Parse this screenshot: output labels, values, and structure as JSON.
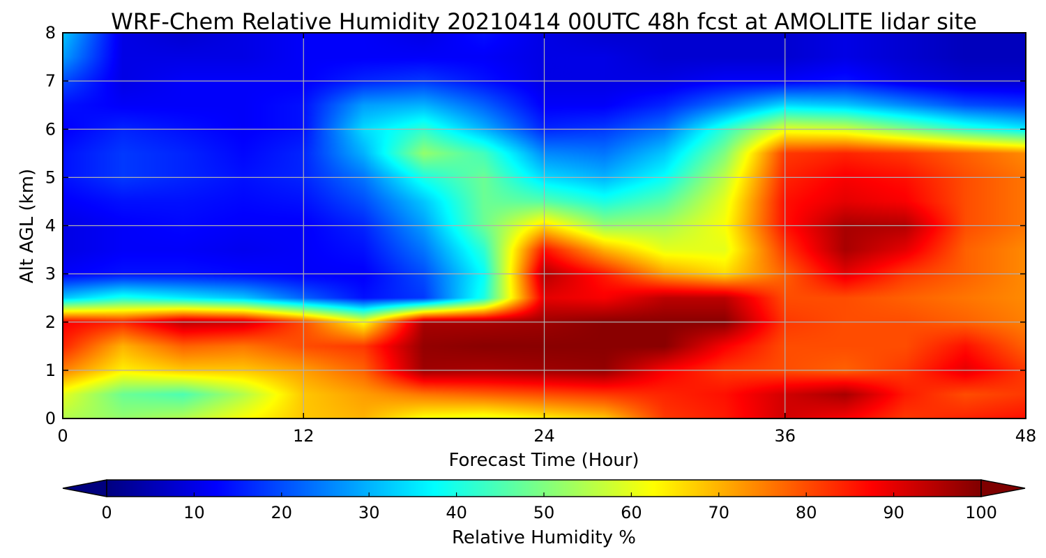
{
  "chart_data": {
    "type": "heatmap",
    "title": "WRF-Chem Relative Humidity 20210414 00UTC 48h fcst at AMOLITE lidar site",
    "xlabel": "Forecast Time (Hour)",
    "ylabel": "Alt AGL (km)",
    "xlim": [
      0,
      48
    ],
    "ylim": [
      0,
      8
    ],
    "xticks": [
      "0",
      "12",
      "24",
      "36",
      "48"
    ],
    "yticks": [
      "0",
      "1",
      "2",
      "3",
      "4",
      "5",
      "6",
      "7",
      "8"
    ],
    "grid": true,
    "x": [
      0,
      3,
      6,
      9,
      12,
      15,
      18,
      21,
      24,
      27,
      30,
      33,
      36,
      39,
      42,
      45,
      48
    ],
    "y": [
      0,
      0.5,
      1,
      1.5,
      2,
      2.5,
      3,
      3.5,
      4,
      4.5,
      5,
      5.5,
      6,
      6.5,
      7,
      7.5,
      8
    ],
    "z": [
      [
        55,
        52,
        55,
        62,
        68,
        70,
        62,
        60,
        64,
        68,
        82,
        85,
        92,
        88,
        82,
        84,
        86
      ],
      [
        60,
        48,
        45,
        55,
        68,
        72,
        76,
        78,
        80,
        82,
        84,
        86,
        92,
        96,
        85,
        80,
        82
      ],
      [
        75,
        64,
        68,
        68,
        72,
        78,
        97,
        96,
        97,
        98,
        88,
        82,
        80,
        78,
        82,
        90,
        82
      ],
      [
        84,
        70,
        78,
        76,
        80,
        82,
        98,
        99,
        99,
        99,
        99,
        88,
        80,
        80,
        80,
        86,
        78
      ],
      [
        88,
        84,
        94,
        92,
        80,
        62,
        96,
        96,
        97,
        99,
        99,
        99,
        82,
        80,
        80,
        78,
        75
      ],
      [
        32,
        40,
        36,
        32,
        22,
        14,
        18,
        40,
        90,
        88,
        94,
        94,
        80,
        80,
        78,
        76,
        74
      ],
      [
        12,
        14,
        14,
        13,
        12,
        12,
        20,
        38,
        95,
        85,
        72,
        66,
        78,
        90,
        82,
        78,
        74
      ],
      [
        10,
        12,
        12,
        11,
        12,
        14,
        24,
        42,
        86,
        70,
        60,
        60,
        82,
        96,
        90,
        78,
        74
      ],
      [
        10,
        12,
        13,
        12,
        12,
        16,
        28,
        48,
        66,
        52,
        54,
        62,
        86,
        96,
        95,
        80,
        76
      ],
      [
        12,
        14,
        14,
        13,
        14,
        20,
        32,
        48,
        46,
        40,
        46,
        60,
        86,
        90,
        88,
        80,
        76
      ],
      [
        14,
        18,
        16,
        14,
        16,
        24,
        40,
        48,
        34,
        30,
        38,
        56,
        84,
        88,
        86,
        80,
        76
      ],
      [
        14,
        18,
        16,
        13,
        16,
        30,
        52,
        44,
        26,
        24,
        32,
        50,
        82,
        84,
        82,
        78,
        74
      ],
      [
        12,
        16,
        14,
        12,
        14,
        34,
        42,
        30,
        16,
        18,
        24,
        42,
        60,
        58,
        50,
        42,
        36
      ],
      [
        14,
        12,
        12,
        12,
        14,
        28,
        30,
        22,
        12,
        12,
        16,
        24,
        34,
        32,
        26,
        20,
        18
      ],
      [
        20,
        10,
        12,
        12,
        12,
        16,
        18,
        14,
        10,
        10,
        10,
        12,
        12,
        14,
        10,
        8,
        8
      ],
      [
        28,
        10,
        10,
        10,
        12,
        12,
        12,
        12,
        10,
        10,
        8,
        8,
        8,
        10,
        8,
        6,
        6
      ],
      [
        32,
        10,
        8,
        10,
        12,
        12,
        10,
        14,
        10,
        8,
        8,
        8,
        8,
        10,
        8,
        6,
        6
      ]
    ],
    "colorbar": {
      "label": "Relative Humidity %",
      "ticks": [
        "0",
        "10",
        "20",
        "30",
        "40",
        "50",
        "60",
        "70",
        "80",
        "90",
        "100"
      ],
      "range": [
        0,
        100
      ],
      "extend": "both",
      "colormap": "jet"
    }
  }
}
